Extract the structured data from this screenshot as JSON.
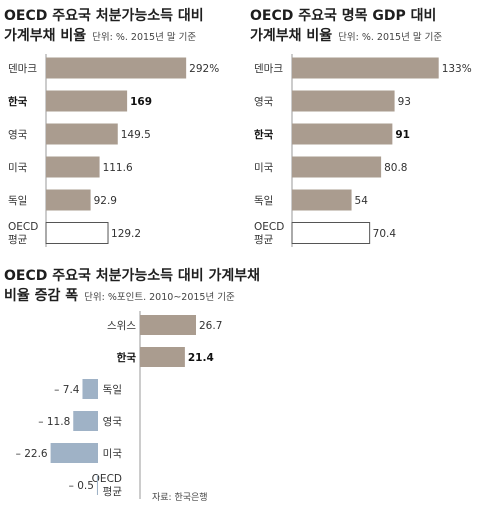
{
  "colors": {
    "bar_brown": "#aa9c8f",
    "bar_blue": "#9fb2c6",
    "axis": "#9a9a9a",
    "outline": "#555555"
  },
  "chart_data": [
    {
      "type": "bar",
      "orientation": "horizontal",
      "title_line1": "OECD 주요국 처분가능소득 대비",
      "title_line2": "가계부채 비율",
      "unit": "단위: %. 2015년 말 기준",
      "categories": [
        "덴마크",
        "한국",
        "영국",
        "미국",
        "독일",
        "OECD\n평균"
      ],
      "values": [
        292,
        169,
        149.5,
        111.6,
        92.9,
        129.2
      ],
      "value_labels": [
        "292%",
        "169",
        "149.5",
        "111.6",
        "92.9",
        "129.2"
      ],
      "highlight": [
        "한국"
      ],
      "outlined": [
        "OECD\n평균"
      ],
      "xlim": [
        0,
        300
      ]
    },
    {
      "type": "bar",
      "orientation": "horizontal",
      "title_line1": "OECD 주요국 명목 GDP 대비",
      "title_line2": "가계부채 비율",
      "unit": "단위: %. 2015년 말 기준",
      "categories": [
        "덴마크",
        "영국",
        "한국",
        "미국",
        "독일",
        "OECD\n평균"
      ],
      "values": [
        133,
        93,
        91,
        80.8,
        54,
        70.4
      ],
      "value_labels": [
        "133%",
        "93",
        "91",
        "80.8",
        "54",
        "70.4"
      ],
      "highlight": [
        "한국"
      ],
      "outlined": [
        "OECD\n평균"
      ],
      "xlim": [
        0,
        136
      ]
    },
    {
      "type": "bar",
      "orientation": "horizontal",
      "diverging": true,
      "title_line1": "OECD 주요국 처분가능소득 대비 가계부채",
      "title_line2": "비율 증감 폭",
      "unit": "단위: %포인트. 2010~2015년 기준",
      "categories": [
        "스위스",
        "한국",
        "독일",
        "영국",
        "미국",
        "OECD\n평균"
      ],
      "values": [
        26.7,
        21.4,
        -7.4,
        -11.8,
        -22.6,
        -0.5
      ],
      "value_labels": [
        "26.7",
        "21.4",
        "– 7.4",
        "– 11.8",
        "– 22.6",
        "– 0.5"
      ],
      "highlight": [
        "한국"
      ],
      "xlim": [
        -25,
        30
      ],
      "source": "자료: 한국은행"
    }
  ]
}
